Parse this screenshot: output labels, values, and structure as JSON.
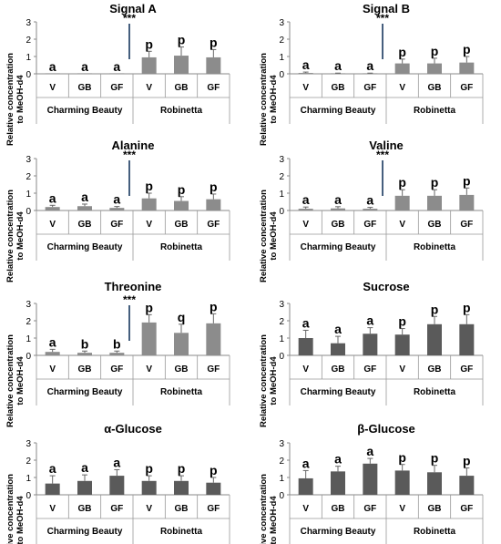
{
  "figure": {
    "ylabel_line1": "Relative concentration",
    "ylabel_line2": "to MeOH-d4",
    "categories": [
      "V",
      "GB",
      "GF",
      "V",
      "GB",
      "GF"
    ],
    "groups": [
      "Charming Beauty",
      "Robinetta"
    ],
    "yticks": [
      "0",
      "1",
      "2",
      "3"
    ]
  },
  "chart_data": [
    {
      "type": "bar",
      "title": "Signal A",
      "categories": [
        "V",
        "GB",
        "GF",
        "V",
        "GB",
        "GF"
      ],
      "values": [
        0,
        0,
        0,
        0.95,
        1.05,
        0.95
      ],
      "errors": [
        0,
        0,
        0,
        0.35,
        0.5,
        0.45
      ],
      "letters": [
        "a",
        "a",
        "a",
        "p",
        "p",
        "p"
      ],
      "significance": "***",
      "ylim": [
        0,
        3
      ],
      "color": "#8c8c8c"
    },
    {
      "type": "bar",
      "title": "Signal B",
      "categories": [
        "V",
        "GB",
        "GF",
        "V",
        "GB",
        "GF"
      ],
      "values": [
        0.05,
        0.02,
        0.02,
        0.6,
        0.6,
        0.65
      ],
      "errors": [
        0.05,
        0.02,
        0.02,
        0.25,
        0.3,
        0.35
      ],
      "letters": [
        "a",
        "a",
        "a",
        "p",
        "p",
        "p"
      ],
      "significance": "***",
      "ylim": [
        0,
        3
      ],
      "color": "#8c8c8c"
    },
    {
      "type": "bar",
      "title": "Alanine",
      "categories": [
        "V",
        "GB",
        "GF",
        "V",
        "GB",
        "GF"
      ],
      "values": [
        0.2,
        0.25,
        0.15,
        0.7,
        0.55,
        0.65
      ],
      "errors": [
        0.1,
        0.12,
        0.08,
        0.3,
        0.25,
        0.3
      ],
      "letters": [
        "a",
        "a",
        "a",
        "p",
        "p",
        "p"
      ],
      "significance": "***",
      "ylim": [
        0,
        3
      ],
      "color": "#8c8c8c"
    },
    {
      "type": "bar",
      "title": "Valine",
      "categories": [
        "V",
        "GB",
        "GF",
        "V",
        "GB",
        "GF"
      ],
      "values": [
        0.1,
        0.12,
        0.1,
        0.85,
        0.85,
        0.9
      ],
      "errors": [
        0.1,
        0.1,
        0.08,
        0.35,
        0.35,
        0.4
      ],
      "letters": [
        "a",
        "a",
        "a",
        "p",
        "p",
        "p"
      ],
      "significance": "***",
      "ylim": [
        0,
        3
      ],
      "color": "#8c8c8c"
    },
    {
      "type": "bar",
      "title": "Threonine",
      "categories": [
        "V",
        "GB",
        "GF",
        "V",
        "GB",
        "GF"
      ],
      "values": [
        0.2,
        0.15,
        0.15,
        1.9,
        1.3,
        1.85
      ],
      "errors": [
        0.15,
        0.1,
        0.1,
        0.45,
        0.5,
        0.55
      ],
      "letters": [
        "a",
        "b",
        "b",
        "p",
        "q",
        "p"
      ],
      "significance": "***",
      "ylim": [
        0,
        3
      ],
      "color": "#8c8c8c"
    },
    {
      "type": "bar",
      "title": "Sucrose",
      "categories": [
        "V",
        "GB",
        "GF",
        "V",
        "GB",
        "GF"
      ],
      "values": [
        1.0,
        0.7,
        1.25,
        1.2,
        1.8,
        1.8
      ],
      "errors": [
        0.45,
        0.4,
        0.35,
        0.35,
        0.45,
        0.55
      ],
      "letters": [
        "a",
        "a",
        "a",
        "p",
        "p",
        "p"
      ],
      "significance": "",
      "ylim": [
        0,
        3
      ],
      "color": "#5a5a5a"
    },
    {
      "type": "bar",
      "title": "α-Glucose",
      "categories": [
        "V",
        "GB",
        "GF",
        "V",
        "GB",
        "GF"
      ],
      "values": [
        0.65,
        0.8,
        1.1,
        0.8,
        0.8,
        0.7
      ],
      "errors": [
        0.45,
        0.35,
        0.35,
        0.3,
        0.3,
        0.3
      ],
      "letters": [
        "a",
        "a",
        "a",
        "p",
        "p",
        "p"
      ],
      "significance": "",
      "ylim": [
        0,
        3
      ],
      "color": "#5a5a5a"
    },
    {
      "type": "bar",
      "title": "β-Glucose",
      "categories": [
        "V",
        "GB",
        "GF",
        "V",
        "GB",
        "GF"
      ],
      "values": [
        0.95,
        1.35,
        1.8,
        1.4,
        1.3,
        1.1
      ],
      "errors": [
        0.45,
        0.3,
        0.3,
        0.35,
        0.4,
        0.45
      ],
      "letters": [
        "a",
        "a",
        "a",
        "p",
        "p",
        "p"
      ],
      "significance": "",
      "ylim": [
        0,
        3
      ],
      "color": "#5a5a5a"
    }
  ]
}
